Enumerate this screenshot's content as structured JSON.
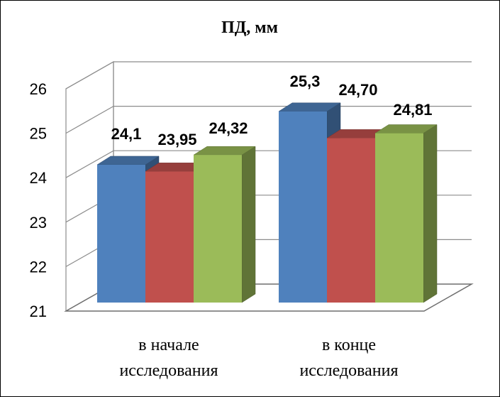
{
  "chart_data": {
    "type": "bar",
    "title": "ПД, мм",
    "categories": [
      [
        "в начале",
        "исследования"
      ],
      [
        "в конце",
        "исследования"
      ]
    ],
    "series": [
      {
        "values": [
          24.1,
          25.3
        ],
        "labels": [
          "24,1",
          "25,3"
        ],
        "color": "#4F81BD"
      },
      {
        "values": [
          23.95,
          24.7
        ],
        "labels": [
          "23,95",
          "24,70"
        ],
        "color": "#C0504D"
      },
      {
        "values": [
          24.32,
          24.81
        ],
        "labels": [
          "24,32",
          "24,81"
        ],
        "color": "#9BBB59"
      }
    ],
    "ylim": [
      21,
      26
    ],
    "yticks": [
      "21",
      "22",
      "23",
      "24",
      "25",
      "26"
    ],
    "grid": true,
    "legend": false,
    "style": "3d-clustered-column"
  }
}
